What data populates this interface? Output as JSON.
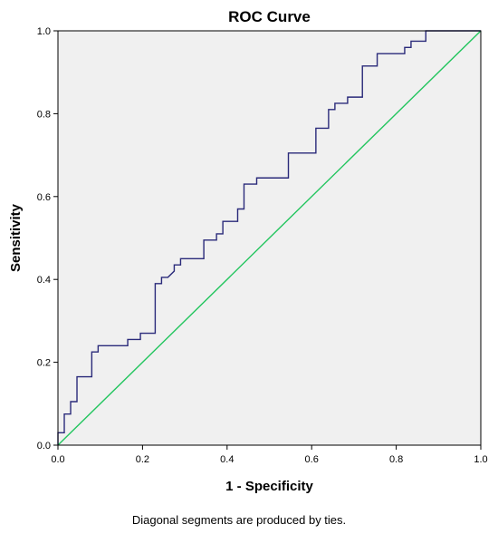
{
  "chart_data": {
    "type": "line",
    "title": "ROC Curve",
    "xlabel": "1 - Specificity",
    "ylabel": "Sensitivity",
    "xlim": [
      0.0,
      1.0
    ],
    "ylim": [
      0.0,
      1.0
    ],
    "x_ticks": [
      "0.0",
      "0.2",
      "0.4",
      "0.6",
      "0.8",
      "1.0"
    ],
    "y_ticks": [
      "0.0",
      "0.2",
      "0.4",
      "0.6",
      "0.8",
      "1.0"
    ],
    "grid": false,
    "plot_background": "#f0f0f0",
    "footnote": "Diagonal segments are produced by ties.",
    "series": [
      {
        "color": "#2a2a7a",
        "step": true,
        "points": [
          [
            0.0,
            0.0
          ],
          [
            0.0,
            0.03
          ],
          [
            0.015,
            0.03
          ],
          [
            0.015,
            0.075
          ],
          [
            0.03,
            0.075
          ],
          [
            0.03,
            0.105
          ],
          [
            0.045,
            0.105
          ],
          [
            0.045,
            0.165
          ],
          [
            0.08,
            0.165
          ],
          [
            0.08,
            0.225
          ],
          [
            0.095,
            0.225
          ],
          [
            0.095,
            0.24
          ],
          [
            0.165,
            0.24
          ],
          [
            0.165,
            0.255
          ],
          [
            0.195,
            0.255
          ],
          [
            0.195,
            0.27
          ],
          [
            0.23,
            0.27
          ],
          [
            0.23,
            0.39
          ],
          [
            0.245,
            0.39
          ],
          [
            0.245,
            0.405
          ],
          [
            0.26,
            0.405
          ],
          [
            0.275,
            0.42
          ],
          [
            0.275,
            0.435
          ],
          [
            0.29,
            0.435
          ],
          [
            0.29,
            0.45
          ],
          [
            0.345,
            0.45
          ],
          [
            0.345,
            0.495
          ],
          [
            0.375,
            0.495
          ],
          [
            0.375,
            0.51
          ],
          [
            0.39,
            0.51
          ],
          [
            0.39,
            0.54
          ],
          [
            0.425,
            0.54
          ],
          [
            0.425,
            0.57
          ],
          [
            0.44,
            0.57
          ],
          [
            0.44,
            0.63
          ],
          [
            0.47,
            0.63
          ],
          [
            0.47,
            0.645
          ],
          [
            0.545,
            0.645
          ],
          [
            0.545,
            0.705
          ],
          [
            0.61,
            0.705
          ],
          [
            0.61,
            0.765
          ],
          [
            0.64,
            0.765
          ],
          [
            0.64,
            0.81
          ],
          [
            0.655,
            0.81
          ],
          [
            0.655,
            0.825
          ],
          [
            0.685,
            0.825
          ],
          [
            0.685,
            0.84
          ],
          [
            0.72,
            0.84
          ],
          [
            0.72,
            0.915
          ],
          [
            0.755,
            0.915
          ],
          [
            0.755,
            0.945
          ],
          [
            0.82,
            0.945
          ],
          [
            0.82,
            0.96
          ],
          [
            0.835,
            0.96
          ],
          [
            0.835,
            0.975
          ],
          [
            0.87,
            0.975
          ],
          [
            0.87,
            1.0
          ],
          [
            1.0,
            1.0
          ]
        ]
      },
      {
        "color": "#22c55e",
        "step": false,
        "points": [
          [
            0.0,
            0.0
          ],
          [
            1.0,
            1.0
          ]
        ]
      }
    ]
  }
}
